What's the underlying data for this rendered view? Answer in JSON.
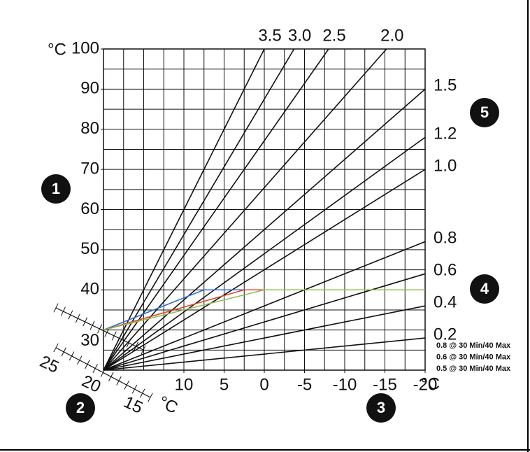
{
  "chart_data": {
    "type": "line",
    "y_unit": "°C",
    "x_unit": "°C",
    "xlim": [
      20,
      -20
    ],
    "ylim": [
      20,
      100
    ],
    "xticks": [
      10,
      5,
      0,
      -5,
      -10,
      -15,
      -20
    ],
    "yticks": [
      30,
      40,
      50,
      60,
      70,
      80,
      90,
      100
    ],
    "grid": {
      "x_step": 2.5,
      "y_step": 5
    },
    "room_axis": {
      "labels": [
        "25",
        "20",
        "15"
      ],
      "unit": "°C"
    },
    "series": [
      {
        "name": "3.5",
        "color": "#111111",
        "x": [
          20,
          0
        ],
        "values": [
          20,
          100
        ]
      },
      {
        "name": "3.0",
        "color": "#111111",
        "x": [
          20,
          -3.7
        ],
        "values": [
          20,
          100
        ]
      },
      {
        "name": "2.5",
        "color": "#111111",
        "x": [
          20,
          -8
        ],
        "values": [
          20,
          100
        ]
      },
      {
        "name": "2.0",
        "color": "#111111",
        "x": [
          20,
          -15.2
        ],
        "values": [
          20,
          100
        ]
      },
      {
        "name": "1.5",
        "color": "#111111",
        "x": [
          20,
          -20
        ],
        "values": [
          20,
          90
        ]
      },
      {
        "name": "1.2",
        "color": "#111111",
        "x": [
          20,
          -20
        ],
        "values": [
          20,
          78
        ]
      },
      {
        "name": "1.0",
        "color": "#111111",
        "x": [
          20,
          -20
        ],
        "values": [
          20,
          70
        ]
      },
      {
        "name": "0.8",
        "color": "#111111",
        "x": [
          20,
          -20
        ],
        "values": [
          20,
          52
        ]
      },
      {
        "name": "0.6",
        "color": "#111111",
        "x": [
          20,
          -20
        ],
        "values": [
          20,
          44
        ]
      },
      {
        "name": "0.4",
        "color": "#111111",
        "x": [
          20,
          -20
        ],
        "values": [
          20,
          36
        ]
      },
      {
        "name": "0.2",
        "color": "#111111",
        "x": [
          20,
          -20
        ],
        "values": [
          20,
          28
        ]
      }
    ],
    "settings": [
      {
        "name": "0.8 @ 30 Min/40 Max",
        "color": "#2a6fd6",
        "x": [
          20,
          7.5,
          -20
        ],
        "values": [
          30,
          40,
          40
        ]
      },
      {
        "name": "0.6 @ 30 Min/40 Max",
        "color": "#e0452a",
        "x": [
          20,
          2.5,
          -20
        ],
        "values": [
          30,
          40,
          40
        ]
      },
      {
        "name": "0.5 @ 30 Min/40 Max",
        "color": "#8cc152",
        "x": [
          20,
          0,
          -20
        ],
        "values": [
          30,
          40,
          40
        ]
      }
    ],
    "markers": [
      "1",
      "2",
      "3",
      "4",
      "5"
    ]
  }
}
